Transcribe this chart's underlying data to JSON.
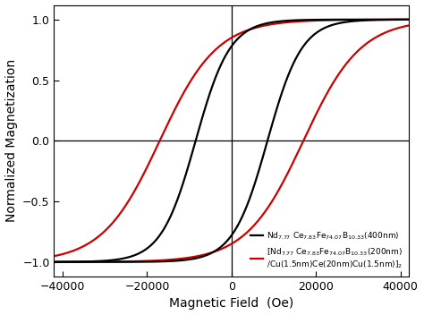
{
  "xlim": [
    -42000,
    42000
  ],
  "ylim": [
    -1.12,
    1.12
  ],
  "xlabel": "Magnetic Field  (Oe)",
  "ylabel": "Normalized Magnetization",
  "xticks": [
    -40000,
    -20000,
    0,
    20000,
    40000
  ],
  "yticks": [
    -1.0,
    -0.5,
    0.0,
    0.5,
    1.0
  ],
  "black_color": "#000000",
  "red_color": "#cc0000",
  "line_width": 1.6,
  "background_color": "#ffffff",
  "figure_width": 4.74,
  "figure_height": 3.52,
  "dpi": 100,
  "black_Hc": 8500,
  "black_k": 9e-05,
  "black_Hc2": 18000,
  "black_k2": 4e-05,
  "red_Hc": 17000,
  "red_k": 0.00013,
  "red_Hc2": 8000,
  "red_k2": 4e-05,
  "legend_black": "Nd$_{7.77}$ Ce$_{7.83}$Fe$_{74.07}$B$_{10.33}$(400nm)",
  "legend_red": "[Nd$_{7.77}$ Ce$_{7.83}$Fe$_{74.07}$B$_{10.33}$(200nm)\n/Cu(1.5nm)Ce(20nm)Cu(1.5nm)]$_2$"
}
